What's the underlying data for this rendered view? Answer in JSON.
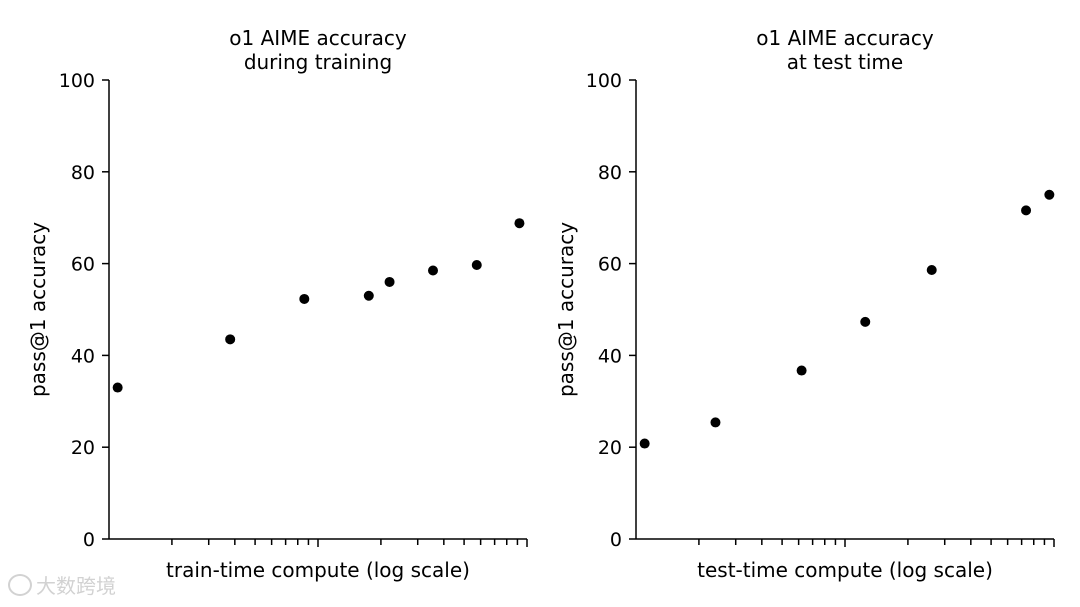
{
  "watermark": "大数跨境",
  "colors": {
    "marker": "#000000",
    "axis": "#000000",
    "background": "#ffffff",
    "watermark": "#d2d2d2"
  },
  "chart_data": [
    {
      "type": "scatter",
      "title": [
        "o1 AIME accuracy",
        "during training"
      ],
      "xlabel": "train-time compute (log scale)",
      "ylabel": "pass@1 accuracy",
      "xscale": "log",
      "xlim": [
        1,
        100
      ],
      "ylim": [
        0,
        100
      ],
      "yticks": [
        0,
        20,
        40,
        60,
        80,
        100
      ],
      "xticks_minor": [
        2,
        3,
        4,
        5,
        6,
        7,
        8,
        9,
        10,
        20,
        30,
        40,
        50,
        60,
        70,
        80,
        90,
        100
      ],
      "grid": false,
      "legend": "none",
      "series": [
        {
          "points": [
            {
              "x": 1.1,
              "y": 33
            },
            {
              "x": 3.8,
              "y": 43.5
            },
            {
              "x": 8.6,
              "y": 52.3
            },
            {
              "x": 17.5,
              "y": 53
            },
            {
              "x": 22,
              "y": 56
            },
            {
              "x": 35.5,
              "y": 58.5
            },
            {
              "x": 57.5,
              "y": 59.7
            },
            {
              "x": 92,
              "y": 68.8
            }
          ]
        }
      ]
    },
    {
      "type": "scatter",
      "title": [
        "o1 AIME accuracy",
        "at test time"
      ],
      "xlabel": "test-time compute (log scale)",
      "ylabel": "pass@1 accuracy",
      "xscale": "log",
      "xlim": [
        1,
        100
      ],
      "ylim": [
        0,
        100
      ],
      "yticks": [
        0,
        20,
        40,
        60,
        80,
        100
      ],
      "xticks_minor": [
        2,
        3,
        4,
        5,
        6,
        7,
        8,
        9,
        10,
        20,
        30,
        40,
        50,
        60,
        70,
        80,
        90,
        100
      ],
      "grid": false,
      "legend": "none",
      "series": [
        {
          "points": [
            {
              "x": 1.1,
              "y": 20.8
            },
            {
              "x": 2.4,
              "y": 25.4
            },
            {
              "x": 6.2,
              "y": 36.7
            },
            {
              "x": 12.5,
              "y": 47.3
            },
            {
              "x": 26,
              "y": 58.6
            },
            {
              "x": 73.5,
              "y": 71.6
            },
            {
              "x": 95,
              "y": 75
            }
          ]
        }
      ]
    }
  ]
}
